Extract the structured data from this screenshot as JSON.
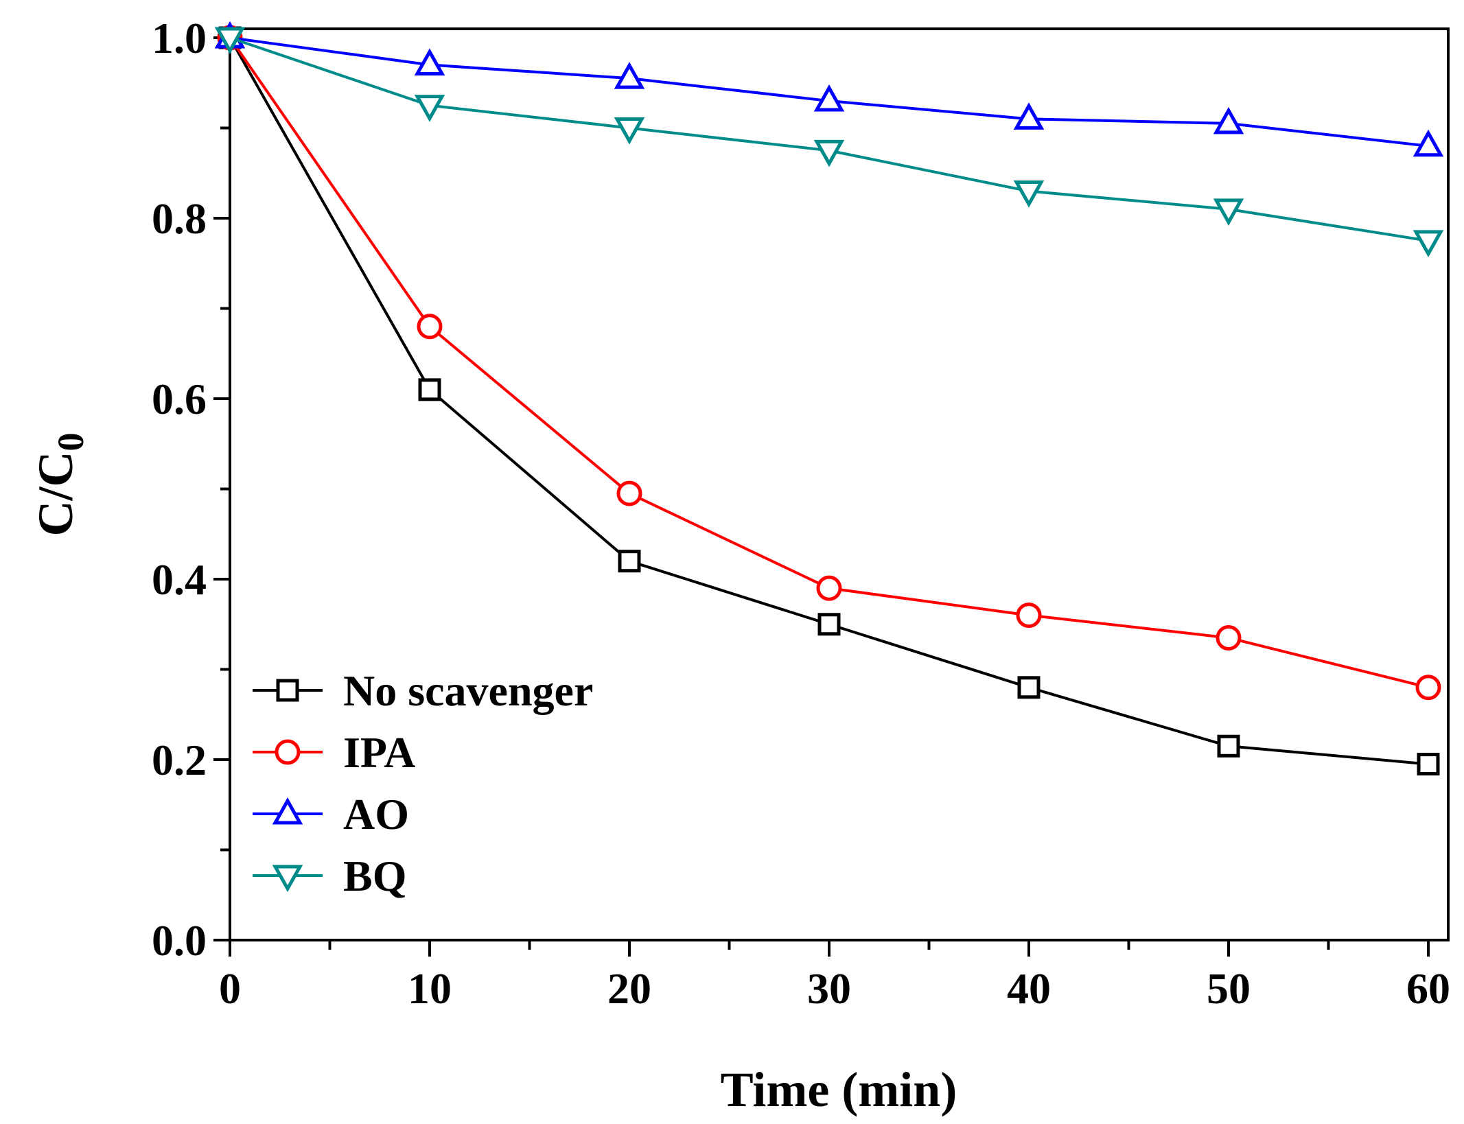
{
  "chart_data": {
    "type": "line",
    "title": "",
    "xlabel": "Time (min)",
    "ylabel_main": "C/C",
    "ylabel_sub": "0",
    "xlim": [
      0,
      60
    ],
    "ylim": [
      0.0,
      1.0
    ],
    "x": [
      0,
      10,
      20,
      30,
      40,
      50,
      60
    ],
    "xticks": [
      "0",
      "10",
      "20",
      "30",
      "40",
      "50",
      "60"
    ],
    "yticks": [
      "0.0",
      "0.2",
      "0.4",
      "0.6",
      "0.8",
      "1.0"
    ],
    "grid": false,
    "legend_position": "bottom-left",
    "series": [
      {
        "name": "No scavenger",
        "marker": "square",
        "color": "#000000",
        "values": [
          1.0,
          0.61,
          0.42,
          0.35,
          0.28,
          0.215,
          0.195
        ]
      },
      {
        "name": "IPA",
        "marker": "circle",
        "color": "#ff0000",
        "values": [
          1.0,
          0.68,
          0.495,
          0.39,
          0.36,
          0.335,
          0.28
        ]
      },
      {
        "name": "AO",
        "marker": "triangle-up",
        "color": "#0000ff",
        "values": [
          1.0,
          0.97,
          0.955,
          0.93,
          0.91,
          0.905,
          0.88
        ]
      },
      {
        "name": "BQ",
        "marker": "triangle-down",
        "color": "#008b8b",
        "values": [
          1.0,
          0.925,
          0.9,
          0.875,
          0.83,
          0.81,
          0.775
        ]
      }
    ]
  }
}
